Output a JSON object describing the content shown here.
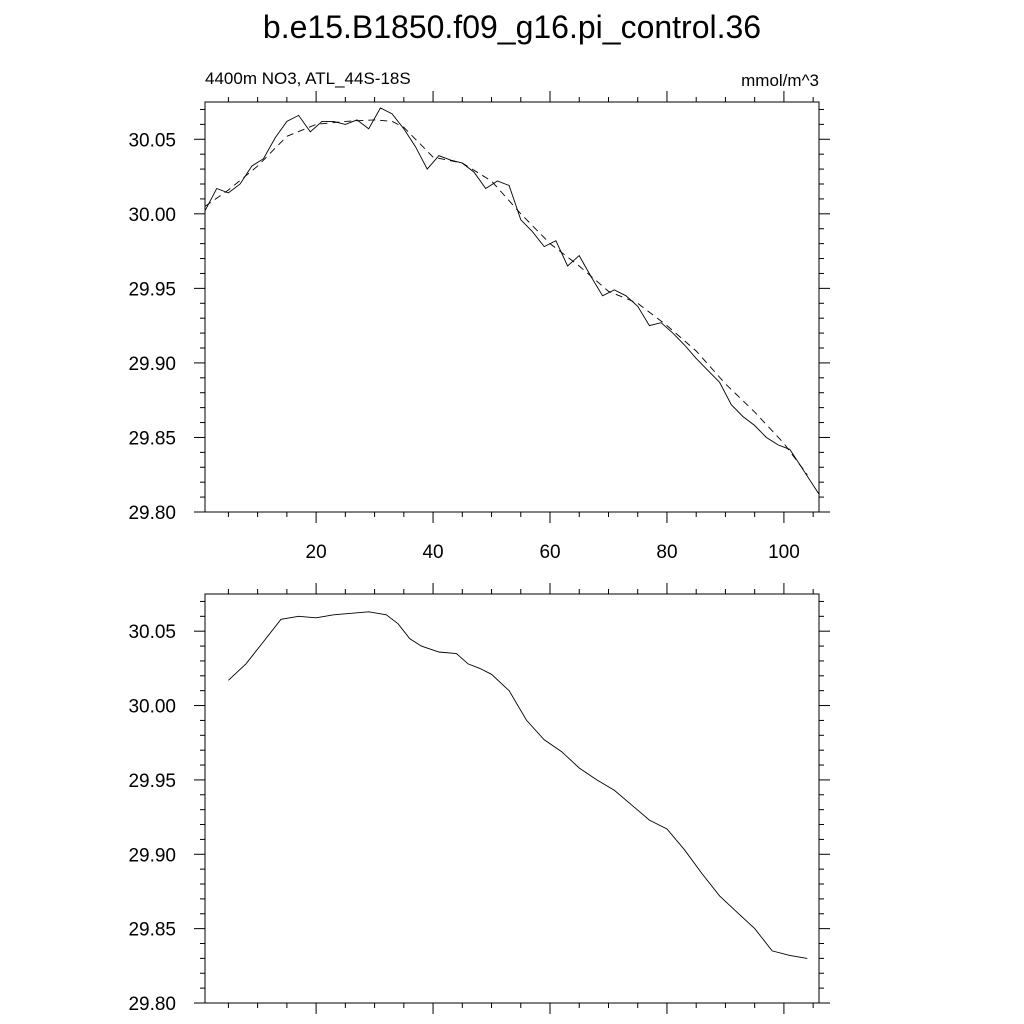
{
  "title": "b.e15.B1850.f09_g16.pi_control.36",
  "chart_data": [
    {
      "type": "line",
      "left_label": "4400m NO3, ATL_44S-18S",
      "right_label": "mmol/m^3",
      "xlim": [
        1,
        106
      ],
      "ylim": [
        29.8,
        30.075
      ],
      "x_ticks": [
        20,
        40,
        60,
        80,
        100
      ],
      "x_tick_labels": [
        "20",
        "40",
        "60",
        "80",
        "100"
      ],
      "y_ticks": [
        29.8,
        29.85,
        29.9,
        29.95,
        30.0,
        30.05
      ],
      "y_tick_labels": [
        "29.80",
        "29.85",
        "29.90",
        "29.95",
        "30.00",
        "30.05"
      ],
      "series": [
        {
          "style": "solid",
          "x": [
            1,
            3,
            5,
            7,
            9,
            11,
            13,
            15,
            17,
            19,
            21,
            23,
            25,
            27,
            29,
            31,
            33,
            35,
            37,
            39,
            41,
            43,
            45,
            47,
            49,
            51,
            53,
            55,
            57,
            59,
            61,
            63,
            65,
            67,
            69,
            71,
            73,
            75,
            77,
            79,
            81,
            83,
            85,
            87,
            89,
            91,
            93,
            95,
            97,
            99,
            101,
            103,
            105,
            106
          ],
          "values": [
            30.002,
            30.017,
            30.014,
            30.02,
            30.032,
            30.037,
            30.051,
            30.062,
            30.066,
            30.055,
            30.062,
            30.062,
            30.06,
            30.063,
            30.057,
            30.071,
            30.067,
            30.057,
            30.045,
            30.03,
            30.039,
            30.036,
            30.034,
            30.028,
            30.017,
            30.022,
            30.019,
            29.996,
            29.988,
            29.978,
            29.982,
            29.965,
            29.972,
            29.958,
            29.945,
            29.949,
            29.945,
            29.938,
            29.925,
            29.927,
            29.92,
            29.912,
            29.903,
            29.895,
            29.887,
            29.872,
            29.864,
            29.858,
            29.85,
            29.845,
            29.842,
            29.83,
            29.818,
            29.812
          ]
        },
        {
          "style": "dashed",
          "x": [
            1,
            5,
            10,
            15,
            20,
            25,
            30,
            33,
            35,
            38,
            40,
            45,
            50,
            55,
            60,
            65,
            70,
            75,
            80,
            85,
            90,
            95,
            100,
            104
          ],
          "values": [
            30.005,
            30.016,
            30.032,
            30.052,
            30.06,
            30.062,
            30.063,
            30.062,
            30.058,
            30.046,
            30.038,
            30.034,
            30.022,
            30.0,
            29.98,
            29.965,
            29.948,
            29.94,
            29.925,
            29.908,
            29.886,
            29.867,
            29.846,
            29.825
          ]
        }
      ]
    },
    {
      "type": "line",
      "xlim": [
        1,
        106
      ],
      "ylim": [
        29.8,
        30.075
      ],
      "x_ticks": [
        20,
        40,
        60,
        80,
        100
      ],
      "y_ticks": [
        29.8,
        29.85,
        29.9,
        29.95,
        30.0,
        30.05
      ],
      "y_tick_labels": [
        "29.80",
        "29.85",
        "29.90",
        "29.95",
        "30.00",
        "30.05"
      ],
      "series": [
        {
          "style": "solid",
          "x": [
            5,
            8,
            11,
            14,
            17,
            20,
            23,
            26,
            29,
            32,
            34,
            36,
            38,
            41,
            44,
            46,
            48,
            50,
            53,
            56,
            59,
            62,
            65,
            68,
            71,
            74,
            77,
            80,
            83,
            86,
            89,
            92,
            95,
            98,
            101,
            104
          ],
          "values": [
            30.017,
            30.028,
            30.043,
            30.058,
            30.06,
            30.059,
            30.061,
            30.062,
            30.063,
            30.061,
            30.055,
            30.045,
            30.04,
            30.036,
            30.035,
            30.028,
            30.025,
            30.021,
            30.01,
            29.99,
            29.977,
            29.969,
            29.958,
            29.95,
            29.943,
            29.933,
            29.923,
            29.917,
            29.903,
            29.887,
            29.872,
            29.861,
            29.85,
            29.835,
            29.832,
            29.83
          ]
        }
      ]
    }
  ]
}
